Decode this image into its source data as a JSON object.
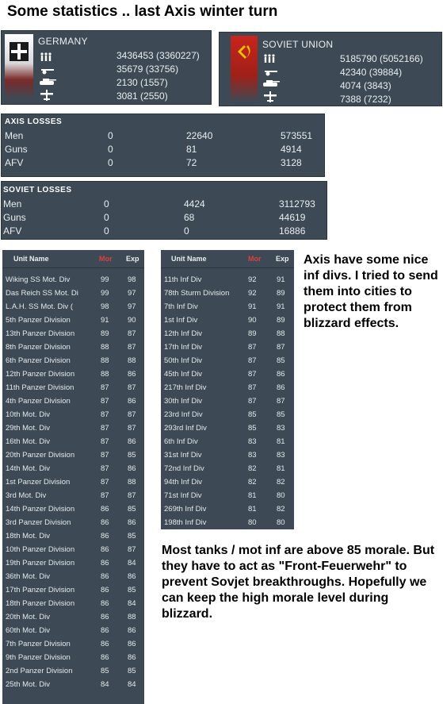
{
  "title": "Some statistics .. last Axis winter turn",
  "germany": {
    "name": "GERMANY",
    "stats": [
      {
        "icon": "infantry-icon",
        "value": "3436453 (3360227)"
      },
      {
        "icon": "guns-icon",
        "value": "35679 (33756)"
      },
      {
        "icon": "tank-icon",
        "value": "2130 (1557)"
      },
      {
        "icon": "aircraft-icon",
        "value": "3081 (2550)"
      }
    ]
  },
  "soviet": {
    "name": "SOVIET UNION",
    "stats": [
      {
        "icon": "infantry-icon",
        "value": "5185790 (5052166)"
      },
      {
        "icon": "guns-icon",
        "value": "42340 (39884)"
      },
      {
        "icon": "tank-icon",
        "value": "4074 (3843)"
      },
      {
        "icon": "aircraft-icon",
        "value": "7388 (7232)"
      }
    ]
  },
  "axis_losses": {
    "heading": "AXIS LOSSES",
    "rows": [
      {
        "label": "Men",
        "c1": "0",
        "c2": "22640",
        "c3": "573551"
      },
      {
        "label": "Guns",
        "c1": "0",
        "c2": "81",
        "c3": "4914"
      },
      {
        "label": "AFV",
        "c1": "0",
        "c2": "72",
        "c3": "3128"
      }
    ]
  },
  "soviet_losses": {
    "heading": "SOVIET LOSSES",
    "rows": [
      {
        "label": "Men",
        "c1": "0",
        "c2": "4424",
        "c3": "3112793"
      },
      {
        "label": "Guns",
        "c1": "0",
        "c2": "68",
        "c3": "44619"
      },
      {
        "label": "AFV",
        "c1": "0",
        "c2": "0",
        "c3": "16886"
      }
    ]
  },
  "unit_table_headers": {
    "name": "Unit Name",
    "mor": "Mor",
    "exp": "Exp"
  },
  "mobile_units": [
    {
      "name": "Wiking SS Mot. Div",
      "mor": "99",
      "exp": "98"
    },
    {
      "name": "Das Reich SS Mot. Di",
      "mor": "99",
      "exp": "97"
    },
    {
      "name": "L.A.H. SS Mot. Div (",
      "mor": "98",
      "exp": "97"
    },
    {
      "name": "5th Panzer Division",
      "mor": "91",
      "exp": "90"
    },
    {
      "name": "13th Panzer Division",
      "mor": "89",
      "exp": "87"
    },
    {
      "name": "8th Panzer Division",
      "mor": "88",
      "exp": "87"
    },
    {
      "name": "6th Panzer Division",
      "mor": "88",
      "exp": "88"
    },
    {
      "name": "12th Panzer Division",
      "mor": "88",
      "exp": "86"
    },
    {
      "name": "11th Panzer Division",
      "mor": "87",
      "exp": "87"
    },
    {
      "name": "4th Panzer Division",
      "mor": "87",
      "exp": "86"
    },
    {
      "name": "10th Mot. Div",
      "mor": "87",
      "exp": "87"
    },
    {
      "name": "29th Mot. Div",
      "mor": "87",
      "exp": "87"
    },
    {
      "name": "16th Mot. Div",
      "mor": "87",
      "exp": "86"
    },
    {
      "name": "20th Panzer Division",
      "mor": "87",
      "exp": "85"
    },
    {
      "name": "14th Mot. Div",
      "mor": "87",
      "exp": "86"
    },
    {
      "name": "1st Panzer Division",
      "mor": "87",
      "exp": "88"
    },
    {
      "name": "3rd Mot. Div",
      "mor": "87",
      "exp": "87"
    },
    {
      "name": "14th Panzer Division",
      "mor": "86",
      "exp": "85"
    },
    {
      "name": "3rd Panzer Division",
      "mor": "86",
      "exp": "86"
    },
    {
      "name": "18th Mot. Div",
      "mor": "86",
      "exp": "85"
    },
    {
      "name": "10th Panzer Division",
      "mor": "86",
      "exp": "87"
    },
    {
      "name": "19th Panzer Division",
      "mor": "86",
      "exp": "84"
    },
    {
      "name": "36th Mot. Div",
      "mor": "86",
      "exp": "86"
    },
    {
      "name": "17th Panzer Division",
      "mor": "86",
      "exp": "85"
    },
    {
      "name": "18th Panzer Division",
      "mor": "86",
      "exp": "84"
    },
    {
      "name": "20th Mot. Div",
      "mor": "86",
      "exp": "88"
    },
    {
      "name": "60th Mot. Div",
      "mor": "86",
      "exp": "86"
    },
    {
      "name": "7th Panzer Division",
      "mor": "86",
      "exp": "86"
    },
    {
      "name": "9th Panzer Division",
      "mor": "86",
      "exp": "86"
    },
    {
      "name": "2nd Panzer Division",
      "mor": "85",
      "exp": "85"
    },
    {
      "name": "25th Mot. Div",
      "mor": "84",
      "exp": "84"
    }
  ],
  "infantry_units": [
    {
      "name": "11th Inf Div",
      "mor": "92",
      "exp": "91"
    },
    {
      "name": "78th Sturm Division",
      "mor": "92",
      "exp": "89"
    },
    {
      "name": "7th Inf Div",
      "mor": "91",
      "exp": "91"
    },
    {
      "name": "1st Inf Div",
      "mor": "90",
      "exp": "89"
    },
    {
      "name": "12th Inf Div",
      "mor": "89",
      "exp": "88"
    },
    {
      "name": "17th Inf Div",
      "mor": "87",
      "exp": "87"
    },
    {
      "name": "50th Inf Div",
      "mor": "87",
      "exp": "85"
    },
    {
      "name": "45th Inf Div",
      "mor": "87",
      "exp": "86"
    },
    {
      "name": "217th Inf Div",
      "mor": "87",
      "exp": "86"
    },
    {
      "name": "30th Inf Div",
      "mor": "87",
      "exp": "87"
    },
    {
      "name": "23rd Inf Div",
      "mor": "85",
      "exp": "85"
    },
    {
      "name": "293rd Inf Div",
      "mor": "85",
      "exp": "83"
    },
    {
      "name": "6th Inf Div",
      "mor": "83",
      "exp": "81"
    },
    {
      "name": "31st Inf Div",
      "mor": "83",
      "exp": "83"
    },
    {
      "name": "72nd Inf Div",
      "mor": "82",
      "exp": "81"
    },
    {
      "name": "94th Inf Div",
      "mor": "82",
      "exp": "82"
    },
    {
      "name": "71st Inf Div",
      "mor": "81",
      "exp": "80"
    },
    {
      "name": "269th Inf Div",
      "mor": "81",
      "exp": "82"
    },
    {
      "name": "198th Inf Div",
      "mor": "80",
      "exp": "80"
    }
  ],
  "notes": {
    "infantry_note": "Axis have some nice inf divs. I tried to send them into cities to protect them from blizzard effects.",
    "tanks_note": "Most tanks / mot inf are above 85 morale. But they have to act as \"Front-Feuerwehr\" to prevent Sovjet breakthroughs. Hopefully we can keep the high morale level during blizzard."
  },
  "colors": {
    "panel": "#3d4a55",
    "morale_header": "#d94040",
    "soviet_flag": "#c8241c",
    "german_flag": "#1a1a1a"
  }
}
